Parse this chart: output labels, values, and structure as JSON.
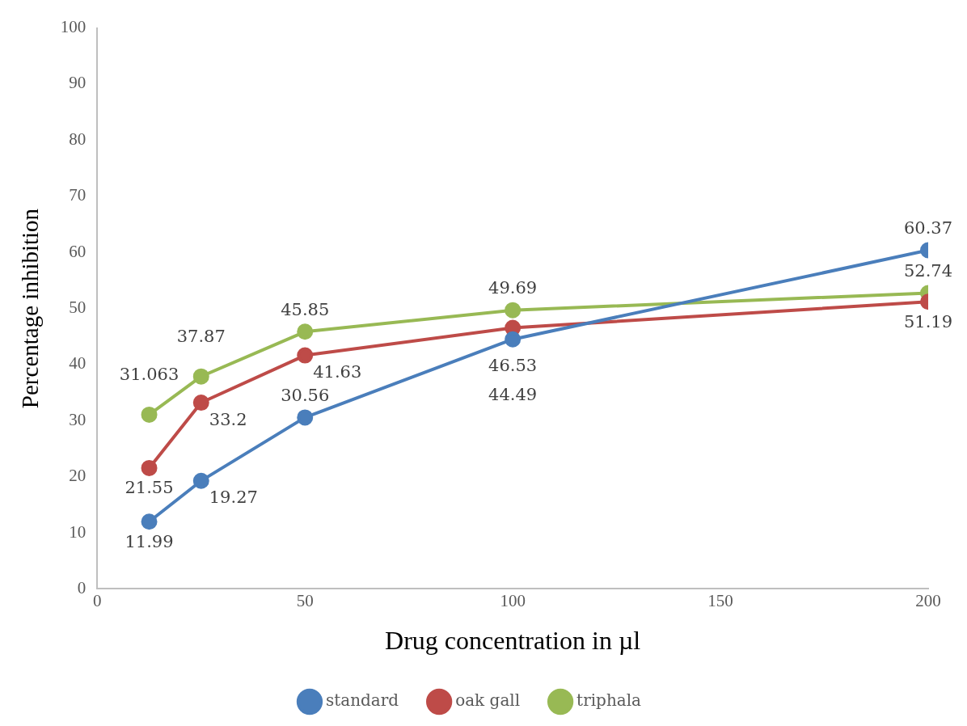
{
  "chart_data": {
    "type": "line",
    "xlabel": "Drug concentration in µl",
    "ylabel": "Percentage inhibition",
    "x": [
      12.5,
      25,
      50,
      100,
      200
    ],
    "series": [
      {
        "name": "standard",
        "color": "#4a7ebb",
        "values": [
          11.99,
          19.27,
          30.56,
          44.49,
          60.37
        ]
      },
      {
        "name": "oak gall",
        "color": "#be4b48",
        "values": [
          21.55,
          33.2,
          41.63,
          46.53,
          51.19
        ]
      },
      {
        "name": "triphala",
        "color": "#98b954",
        "values": [
          31.063,
          37.87,
          45.85,
          49.69,
          52.74
        ]
      }
    ],
    "xlim": [
      0,
      200
    ],
    "xticks": [
      0,
      50,
      100,
      150,
      200
    ],
    "ylim": [
      0,
      100
    ],
    "yticks": [
      0,
      10,
      20,
      30,
      40,
      50,
      60,
      70,
      80,
      90,
      100
    ],
    "grid": false,
    "legend": "bottom",
    "marker": "circle",
    "line_style": "solid",
    "data_labels": true
  }
}
